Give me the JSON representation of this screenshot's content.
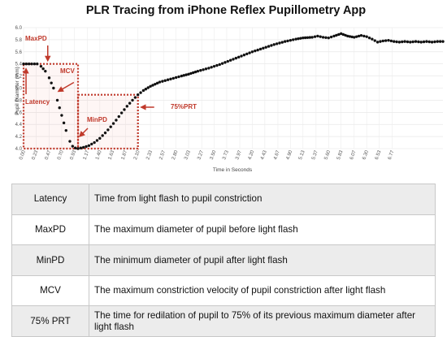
{
  "chart_data": {
    "type": "line",
    "title": "PLR Tracing from iPhone Reflex Pupillometry App",
    "xlabel": "Time in Seconds",
    "ylabel": "Pupil Diameter (mm)",
    "xlim": [
      0,
      7.7
    ],
    "ylim": [
      4.0,
      6.0
    ],
    "yticks": [
      "4.0",
      "4.2",
      "4.4",
      "4.6",
      "4.8",
      "5.0",
      "5.2",
      "5.4",
      "5.6",
      "5.8",
      "6.0"
    ],
    "xticks": [
      "0.00",
      "0.23",
      "0.47",
      "0.70",
      "0.93",
      "1.17",
      "1.40",
      "1.63",
      "1.87",
      "2.10",
      "2.33",
      "2.57",
      "2.80",
      "3.03",
      "3.27",
      "3.50",
      "3.73",
      "3.97",
      "4.20",
      "4.43",
      "4.67",
      "4.90",
      "5.13",
      "5.37",
      "5.60",
      "5.83",
      "6.07",
      "6.30",
      "6.53",
      "6.77"
    ],
    "grid": true,
    "series": [
      {
        "color": "#111111",
        "points": [
          [
            0.0,
            5.4
          ],
          [
            0.15,
            5.4
          ],
          [
            0.25,
            5.4
          ],
          [
            0.32,
            5.36
          ],
          [
            0.4,
            5.28
          ],
          [
            0.47,
            5.17
          ],
          [
            0.55,
            5.0
          ],
          [
            0.62,
            4.8
          ],
          [
            0.7,
            4.55
          ],
          [
            0.78,
            4.3
          ],
          [
            0.85,
            4.12
          ],
          [
            0.9,
            4.04
          ],
          [
            0.95,
            4.01
          ],
          [
            1.0,
            4.0
          ],
          [
            1.1,
            4.02
          ],
          [
            1.2,
            4.05
          ],
          [
            1.3,
            4.1
          ],
          [
            1.4,
            4.17
          ],
          [
            1.5,
            4.26
          ],
          [
            1.6,
            4.36
          ],
          [
            1.7,
            4.47
          ],
          [
            1.8,
            4.59
          ],
          [
            1.9,
            4.7
          ],
          [
            2.0,
            4.8
          ],
          [
            2.1,
            4.89
          ],
          [
            2.2,
            4.96
          ],
          [
            2.33,
            5.03
          ],
          [
            2.5,
            5.1
          ],
          [
            2.7,
            5.15
          ],
          [
            2.9,
            5.2
          ],
          [
            3.03,
            5.23
          ],
          [
            3.2,
            5.28
          ],
          [
            3.4,
            5.33
          ],
          [
            3.6,
            5.39
          ],
          [
            3.8,
            5.46
          ],
          [
            4.0,
            5.53
          ],
          [
            4.2,
            5.6
          ],
          [
            4.4,
            5.66
          ],
          [
            4.6,
            5.72
          ],
          [
            4.8,
            5.77
          ],
          [
            5.0,
            5.81
          ],
          [
            5.13,
            5.83
          ],
          [
            5.3,
            5.84
          ],
          [
            5.4,
            5.86
          ],
          [
            5.5,
            5.84
          ],
          [
            5.6,
            5.83
          ],
          [
            5.7,
            5.86
          ],
          [
            5.83,
            5.9
          ],
          [
            5.95,
            5.86
          ],
          [
            6.07,
            5.84
          ],
          [
            6.2,
            5.87
          ],
          [
            6.3,
            5.85
          ],
          [
            6.4,
            5.81
          ],
          [
            6.5,
            5.76
          ],
          [
            6.6,
            5.78
          ],
          [
            6.7,
            5.79
          ],
          [
            6.8,
            5.77
          ],
          [
            6.9,
            5.76
          ],
          [
            7.0,
            5.77
          ],
          [
            7.1,
            5.76
          ],
          [
            7.2,
            5.77
          ],
          [
            7.3,
            5.76
          ],
          [
            7.4,
            5.77
          ],
          [
            7.5,
            5.76
          ],
          [
            7.6,
            5.77
          ],
          [
            7.7,
            5.77
          ]
        ]
      }
    ],
    "annotations": [
      {
        "label": "MaxPD",
        "x": 0.25,
        "y": 5.4
      },
      {
        "label": "MCV",
        "x": 0.55,
        "y": 5.0
      },
      {
        "label": "Latency",
        "x": 0.12,
        "y": 5.4
      },
      {
        "label": "MinPD",
        "x": 1.0,
        "y": 4.0
      },
      {
        "label": "75%PRT",
        "x": 2.1,
        "y": 4.89
      }
    ],
    "boxes": [
      {
        "x": [
          0.0,
          1.0
        ],
        "y": [
          4.0,
          5.4
        ],
        "color": "#c0392b"
      },
      {
        "x": [
          1.0,
          2.1
        ],
        "y": [
          4.0,
          4.89
        ],
        "color": "#c0392b"
      }
    ]
  },
  "definitions": {
    "rows": [
      {
        "term": "Latency",
        "text": "Time from light flash to pupil constriction"
      },
      {
        "term": "MaxPD",
        "text": "The maximum diameter of pupil before light flash"
      },
      {
        "term": "MinPD",
        "text": "The minimum diameter of pupil after light flash"
      },
      {
        "term": "MCV",
        "text": "The maximum constriction velocity of pupil constriction after light flash"
      },
      {
        "term": "75% PRT",
        "text": "The time for redilation of pupil to 75% of its previous maximum diameter after light flash"
      }
    ]
  }
}
